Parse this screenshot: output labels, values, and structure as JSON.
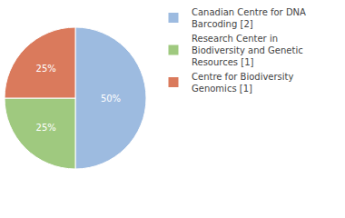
{
  "chart_data": {
    "type": "pie",
    "categories": [
      "Canadian Centre for DNA Barcoding [2]",
      "Research Center in Biodiversity and Genetic Resources [1]",
      "Centre for Biodiversity Genomics [1]"
    ],
    "values": [
      50,
      25,
      25
    ],
    "value_labels": [
      "50%",
      "25%",
      "25%"
    ],
    "colors": [
      "#9dbbe0",
      "#9fc97f",
      "#da7a5c"
    ],
    "data_labels": true,
    "legend": "top right"
  }
}
